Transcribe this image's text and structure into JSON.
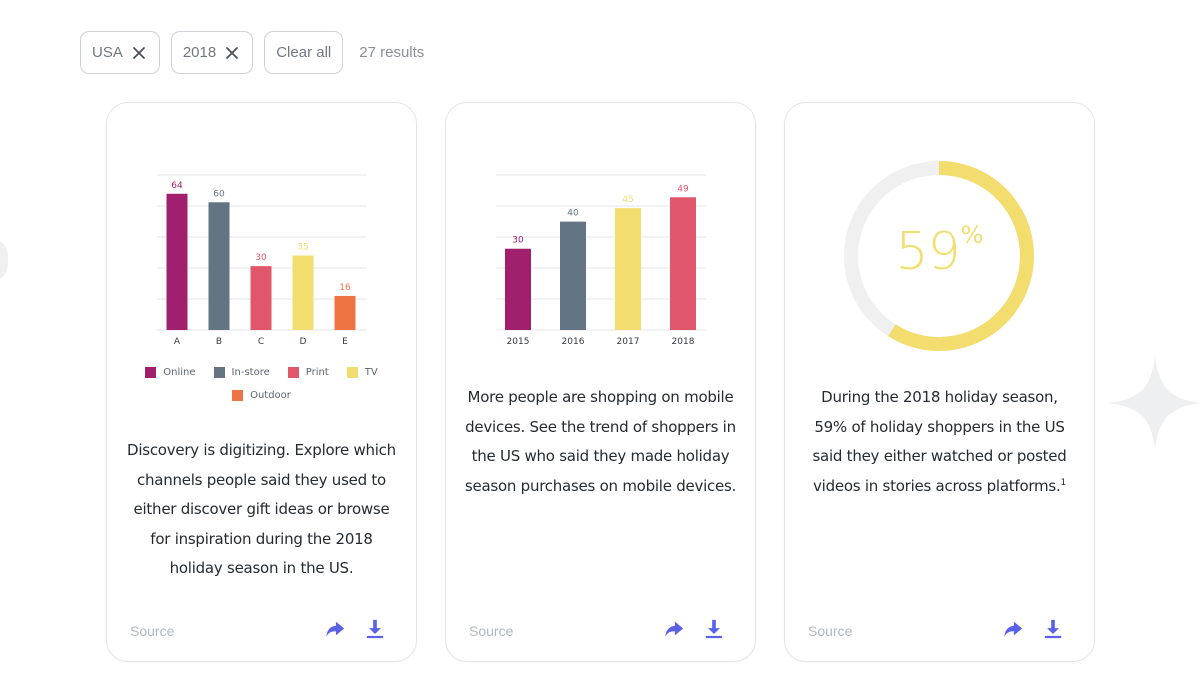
{
  "filters": {
    "chips": [
      {
        "label": "USA"
      },
      {
        "label": "2018"
      }
    ],
    "clear_label": "Clear all",
    "results_text": "27 results"
  },
  "colors": {
    "online": "#a0206e",
    "instore": "#637585",
    "print": "#e0566a",
    "tv": "#f2dd6e",
    "outdoor": "#ef7443",
    "accent_icon": "#5b62e8"
  },
  "cards": [
    {
      "description": "Discovery is digitizing. Explore which channels people said they used to either discover gift ideas or browse for inspiration during the 2018 holiday season in the US.",
      "source_label": "Source",
      "share_icon": "share-icon",
      "download_icon": "download-icon",
      "legend": [
        {
          "label": "Online",
          "color": "#a0206e"
        },
        {
          "label": "In-store",
          "color": "#637585"
        },
        {
          "label": "Print",
          "color": "#e0566a"
        },
        {
          "label": "TV",
          "color": "#f2dd6e"
        },
        {
          "label": "Outdoor",
          "color": "#ef7443"
        }
      ]
    },
    {
      "description": "More people are shopping on mobile devices. See the trend of shoppers in the US who said they made holiday season purchases on mobile devices.",
      "source_label": "Source",
      "share_icon": "share-icon",
      "download_icon": "download-icon"
    },
    {
      "description": "During the 2018 holiday season, 59% of holiday shoppers in the US said they either watched or posted videos in stories across platforms.",
      "footnote": "1",
      "source_label": "Source",
      "share_icon": "share-icon",
      "download_icon": "download-icon",
      "stat_value": "59",
      "stat_unit": "%"
    }
  ],
  "chart_data": [
    {
      "type": "bar",
      "categories": [
        "A",
        "B",
        "C",
        "D",
        "E"
      ],
      "values": [
        64,
        60,
        30,
        35,
        16
      ],
      "series_labels": [
        "Online",
        "In-store",
        "Print",
        "TV",
        "Outdoor"
      ],
      "colors": [
        "#a0206e",
        "#637585",
        "#e0566a",
        "#f2dd6e",
        "#ef7443"
      ],
      "ylim": [
        0,
        70
      ],
      "grid": true,
      "legend": "bottom"
    },
    {
      "type": "bar",
      "categories": [
        "2015",
        "2016",
        "2017",
        "2018"
      ],
      "values": [
        30,
        40,
        45,
        49
      ],
      "colors": [
        "#a0206e",
        "#637585",
        "#f2dd6e",
        "#e0566a"
      ],
      "ylim": [
        0,
        55
      ],
      "grid": true
    },
    {
      "type": "pie",
      "values": [
        59,
        41
      ],
      "labels": [
        "59%",
        ""
      ],
      "colors": [
        "#f2dd6e",
        "#f0f0f0"
      ]
    }
  ]
}
